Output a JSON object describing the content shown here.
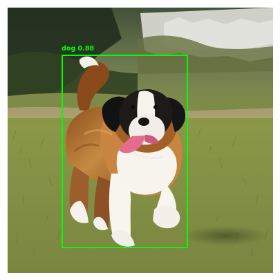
{
  "detection": {
    "class_label": "dog",
    "confidence": "0.88",
    "box_color": "#00ff00"
  },
  "scene": {
    "subject": "dog",
    "subject_icon": "dog-icon",
    "background_palette": [
      "#2d3926",
      "#6b7b52",
      "#8f9b64",
      "#d7d8d1",
      "#b8aa7b"
    ],
    "subject_palette": [
      "#8f4c1c",
      "#ca8a3f",
      "#f5f1eb",
      "#141414",
      "#e16a87"
    ]
  }
}
